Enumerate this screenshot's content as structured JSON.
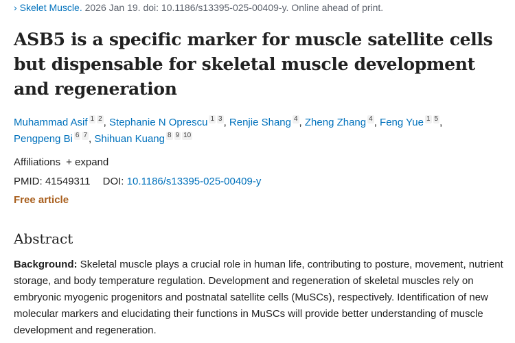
{
  "citation": {
    "journal": "Skelet Muscle.",
    "details": "2026 Jan 19. doi: 10.1186/s13395-025-00409-y. Online ahead of print.",
    "icon": "chevron-right-icon"
  },
  "title": "ASB5 is a specific marker for muscle satellite cells but dispensable for skeletal muscle development and regeneration",
  "authors": [
    {
      "name": "Muhammad Asif",
      "affs": [
        "1",
        "2"
      ]
    },
    {
      "name": "Stephanie N Oprescu",
      "affs": [
        "1",
        "3"
      ]
    },
    {
      "name": "Renjie Shang",
      "affs": [
        "4"
      ]
    },
    {
      "name": "Zheng Zhang",
      "affs": [
        "4"
      ]
    },
    {
      "name": "Feng Yue",
      "affs": [
        "1",
        "5"
      ]
    },
    {
      "name": "Pengpeng Bi",
      "affs": [
        "6",
        "7"
      ]
    },
    {
      "name": "Shihuan Kuang",
      "affs": [
        "8",
        "9",
        "10"
      ]
    }
  ],
  "affiliations": {
    "label": "Affiliations",
    "expand": "+ expand"
  },
  "ids": {
    "pmid_label": "PMID:",
    "pmid": "41549311",
    "doi_label": "DOI:",
    "doi": "10.1186/s13395-025-00409-y"
  },
  "free_article": "Free article",
  "abstract": {
    "heading": "Abstract",
    "background_label": "Background:",
    "background_text": " Skeletal muscle plays a crucial role in human life, contributing to posture, movement, nutrient storage, and body temperature regulation. Development and regeneration of skeletal muscles rely on embryonic myogenic progenitors and postnatal satellite cells (MuSCs), respectively. Identification of new molecular markers and elucidating their functions in MuSCs will provide better understanding of muscle development and regeneration."
  },
  "colors": {
    "link": "#0071bc",
    "free": "#a85e1c",
    "text": "#212121"
  }
}
